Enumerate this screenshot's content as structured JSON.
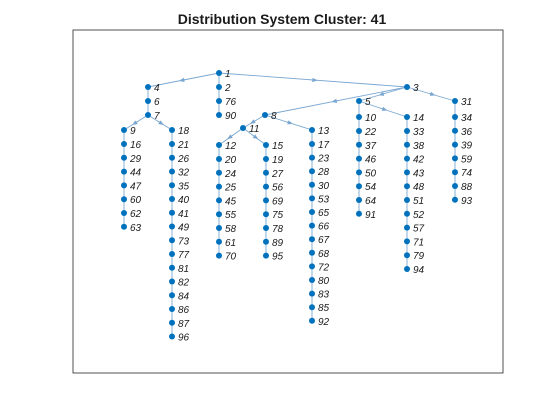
{
  "title": "Distribution System Cluster: 41",
  "colors": {
    "node": "#0072bd",
    "edge": "#7aa7d1",
    "axes": "#262626"
  },
  "graph": {
    "nodes": [
      "1",
      "2",
      "76",
      "90",
      "3",
      "31",
      "34",
      "36",
      "39",
      "59",
      "74",
      "88",
      "93",
      "5",
      "10",
      "22",
      "37",
      "46",
      "50",
      "54",
      "64",
      "91",
      "14",
      "33",
      "38",
      "42",
      "43",
      "48",
      "51",
      "52",
      "57",
      "71",
      "79",
      "94",
      "8",
      "13",
      "17",
      "23",
      "28",
      "30",
      "53",
      "65",
      "66",
      "67",
      "68",
      "72",
      "80",
      "83",
      "85",
      "92",
      "11",
      "12",
      "20",
      "24",
      "25",
      "45",
      "55",
      "58",
      "61",
      "70",
      "15",
      "19",
      "27",
      "56",
      "69",
      "75",
      "78",
      "89",
      "95",
      "4",
      "6",
      "7",
      "9",
      "16",
      "29",
      "44",
      "47",
      "60",
      "62",
      "63",
      "18",
      "21",
      "26",
      "32",
      "35",
      "40",
      "41",
      "49",
      "73",
      "77",
      "81",
      "82",
      "84",
      "86",
      "87",
      "96"
    ],
    "edges": [
      [
        "1",
        "3"
      ],
      [
        "1",
        "4"
      ],
      [
        "1",
        "2"
      ],
      [
        "2",
        "76"
      ],
      [
        "76",
        "90"
      ],
      [
        "3",
        "5"
      ],
      [
        "3",
        "31"
      ],
      [
        "3",
        "8"
      ],
      [
        "31",
        "34"
      ],
      [
        "34",
        "36"
      ],
      [
        "36",
        "39"
      ],
      [
        "39",
        "59"
      ],
      [
        "59",
        "74"
      ],
      [
        "74",
        "88"
      ],
      [
        "88",
        "93"
      ],
      [
        "5",
        "10"
      ],
      [
        "5",
        "14"
      ],
      [
        "10",
        "22"
      ],
      [
        "22",
        "37"
      ],
      [
        "37",
        "46"
      ],
      [
        "46",
        "50"
      ],
      [
        "50",
        "54"
      ],
      [
        "54",
        "64"
      ],
      [
        "64",
        "91"
      ],
      [
        "14",
        "33"
      ],
      [
        "33",
        "38"
      ],
      [
        "38",
        "42"
      ],
      [
        "42",
        "43"
      ],
      [
        "43",
        "48"
      ],
      [
        "48",
        "51"
      ],
      [
        "51",
        "52"
      ],
      [
        "52",
        "57"
      ],
      [
        "57",
        "71"
      ],
      [
        "71",
        "79"
      ],
      [
        "79",
        "94"
      ],
      [
        "8",
        "13"
      ],
      [
        "8",
        "11"
      ],
      [
        "13",
        "17"
      ],
      [
        "17",
        "23"
      ],
      [
        "23",
        "28"
      ],
      [
        "28",
        "30"
      ],
      [
        "30",
        "53"
      ],
      [
        "53",
        "65"
      ],
      [
        "65",
        "66"
      ],
      [
        "66",
        "67"
      ],
      [
        "67",
        "68"
      ],
      [
        "68",
        "72"
      ],
      [
        "72",
        "80"
      ],
      [
        "80",
        "83"
      ],
      [
        "83",
        "85"
      ],
      [
        "85",
        "92"
      ],
      [
        "11",
        "12"
      ],
      [
        "11",
        "15"
      ],
      [
        "12",
        "20"
      ],
      [
        "20",
        "24"
      ],
      [
        "24",
        "25"
      ],
      [
        "25",
        "45"
      ],
      [
        "45",
        "55"
      ],
      [
        "55",
        "58"
      ],
      [
        "58",
        "61"
      ],
      [
        "61",
        "70"
      ],
      [
        "15",
        "19"
      ],
      [
        "19",
        "27"
      ],
      [
        "27",
        "56"
      ],
      [
        "56",
        "69"
      ],
      [
        "69",
        "75"
      ],
      [
        "75",
        "78"
      ],
      [
        "78",
        "89"
      ],
      [
        "89",
        "95"
      ],
      [
        "4",
        "6"
      ],
      [
        "6",
        "7"
      ],
      [
        "7",
        "9"
      ],
      [
        "7",
        "18"
      ],
      [
        "9",
        "16"
      ],
      [
        "16",
        "29"
      ],
      [
        "29",
        "44"
      ],
      [
        "44",
        "47"
      ],
      [
        "47",
        "60"
      ],
      [
        "60",
        "62"
      ],
      [
        "62",
        "63"
      ],
      [
        "18",
        "21"
      ],
      [
        "21",
        "26"
      ],
      [
        "26",
        "32"
      ],
      [
        "32",
        "35"
      ],
      [
        "35",
        "40"
      ],
      [
        "40",
        "41"
      ],
      [
        "41",
        "49"
      ],
      [
        "49",
        "73"
      ],
      [
        "73",
        "77"
      ],
      [
        "77",
        "81"
      ],
      [
        "81",
        "82"
      ],
      [
        "82",
        "84"
      ],
      [
        "84",
        "86"
      ],
      [
        "86",
        "87"
      ],
      [
        "87",
        "96"
      ]
    ]
  }
}
